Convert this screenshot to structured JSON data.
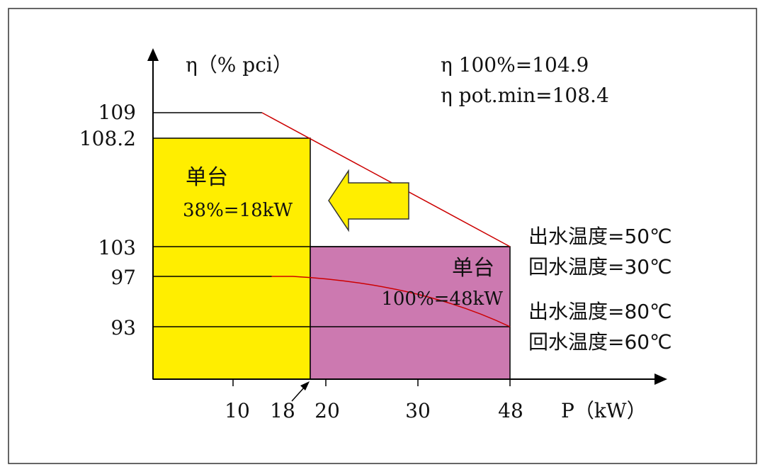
{
  "chart_data": {
    "type": "area",
    "ylabel": "η（% pci）",
    "xlabel": "P（kW）",
    "x_ticks": [
      "10",
      "18",
      "20",
      "30",
      "48"
    ],
    "y_ticks": [
      "109",
      "108.2",
      "103",
      "97",
      "93"
    ],
    "annotations": {
      "eta_100": "η 100%=104.9",
      "eta_pot_min": "η pot.min=108.4"
    },
    "regions": [
      {
        "name": "yellow",
        "color": "#ffee00",
        "x_range": [
          0,
          18
        ],
        "top": 108.2,
        "label_line1": "单台",
        "label_line2": "38%=18kW"
      },
      {
        "name": "purple",
        "color": "#cc79b0",
        "x_range": [
          18,
          48
        ],
        "top": 103,
        "label_line1": "单台",
        "label_line2": "100%=48kW"
      }
    ],
    "series": [
      {
        "name": "出水温度=50℃ / 回水温度=30℃",
        "color": "#cc0000",
        "points": [
          [
            13,
            109
          ],
          [
            48,
            103
          ]
        ]
      },
      {
        "name": "出水温度=80℃ / 回水温度=60℃",
        "color": "#cc0000",
        "points": [
          [
            14,
            97
          ],
          [
            48,
            93
          ]
        ]
      }
    ],
    "series_labels": {
      "upper_line1": "出水温度=50℃",
      "upper_line2": "回水温度=30℃",
      "lower_line1": "出水温度=80℃",
      "lower_line2": "回水温度=60℃"
    }
  }
}
